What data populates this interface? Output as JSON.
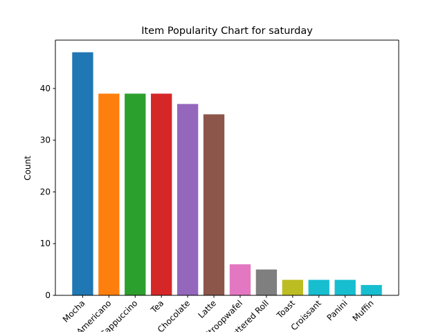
{
  "chart_data": {
    "type": "bar",
    "title": "Item Popularity Chart for saturday",
    "xlabel": "",
    "ylabel": "Count",
    "categories": [
      "Mocha",
      "Americano",
      "Cappuccino",
      "Tea",
      "Hot Chocolate",
      "Latte",
      "Stroopwafel",
      "Buttered Roll",
      "Toast",
      "Croissant",
      "Panini",
      "Muffin"
    ],
    "values": [
      47,
      39,
      39,
      39,
      37,
      35,
      6,
      5,
      3,
      3,
      3,
      2
    ],
    "colors": [
      "#1f77b4",
      "#ff7f0e",
      "#2ca02c",
      "#d62728",
      "#9467bd",
      "#8c564b",
      "#e377c2",
      "#7f7f7f",
      "#bcbd22",
      "#17becf",
      "#17becf",
      "#17becf"
    ],
    "yticks": [
      0,
      10,
      20,
      30,
      40
    ],
    "ylim": [
      0,
      49.35
    ],
    "grid": false,
    "legend": "none"
  }
}
